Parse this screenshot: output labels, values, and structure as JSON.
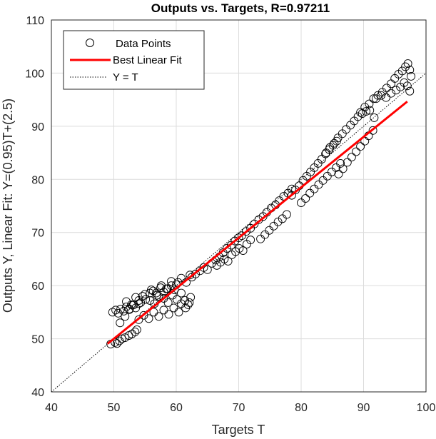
{
  "chart_data": {
    "type": "scatter",
    "title": "Outputs vs. Targets, R=0.97211",
    "xlabel": "Targets T",
    "ylabel": "Outputs Y,  Linear Fit: Y=(0.95)T+(2.5)",
    "xlim": [
      40,
      100
    ],
    "ylim": [
      40,
      110
    ],
    "xticks": [
      "40",
      "50",
      "60",
      "70",
      "80",
      "90",
      "100"
    ],
    "yticks": [
      "40",
      "50",
      "60",
      "70",
      "80",
      "90",
      "100",
      "110"
    ],
    "grid": true,
    "legend_position": "top-left",
    "legend": [
      "Data Points",
      "Best Linear Fit",
      "Y = T"
    ],
    "fit": {
      "slope": 0.95,
      "intercept": 2.5,
      "x_range": [
        49,
        97
      ]
    },
    "series": [
      {
        "name": "Data Points",
        "marker": "open-circle",
        "x": [
          49.5,
          50.2,
          50.5,
          50.9,
          51.3,
          51.8,
          52.4,
          52.9,
          53.4,
          53.7,
          49.8,
          50.3,
          50.7,
          51.1,
          51.6,
          52.0,
          52.5,
          53.0,
          53.5,
          54.0,
          51.0,
          51.8,
          52.5,
          53.2,
          54.0,
          54.6,
          55.1,
          55.8,
          56.3,
          56.9,
          57.5,
          58.0,
          58.6,
          59.2,
          59.7,
          60.3,
          60.8,
          61.4,
          61.9,
          62.3,
          52.0,
          52.8,
          53.5,
          54.3,
          55.0,
          55.8,
          56.5,
          57.2,
          58.0,
          58.7,
          59.4,
          60.1,
          60.8,
          61.5,
          62.1,
          54.0,
          54.8,
          55.6,
          56.4,
          57.2,
          58.0,
          58.8,
          59.6,
          60.4,
          56.0,
          56.8,
          57.6,
          58.4,
          59.2,
          60.0,
          60.8,
          61.6,
          62.2,
          62.5,
          63.1,
          63.8,
          64.4,
          65.0,
          65.7,
          66.3,
          66.9,
          67.5,
          68.1,
          68.8,
          69.4,
          70.0,
          66.5,
          67.1,
          67.7,
          68.3,
          68.9,
          69.5,
          70.1,
          70.7,
          71.3,
          71.9,
          70.5,
          71.2,
          71.9,
          72.5,
          73.2,
          73.9,
          74.5,
          75.2,
          75.9,
          76.5,
          77.2,
          77.9,
          78.5,
          73.5,
          74.2,
          74.9,
          75.6,
          76.3,
          77.0,
          77.7,
          78.5,
          79.1,
          79.7,
          80.3,
          80.9,
          81.5,
          82.1,
          82.7,
          83.3,
          83.9,
          84.5,
          85.1,
          85.7,
          80.0,
          80.7,
          81.4,
          82.1,
          82.8,
          83.5,
          84.2,
          84.9,
          85.6,
          86.3,
          84.0,
          84.6,
          85.3,
          85.9,
          86.6,
          87.2,
          87.9,
          88.5,
          89.1,
          89.8,
          90.4,
          91.0,
          91.7,
          86.0,
          86.7,
          87.4,
          88.1,
          88.8,
          89.5,
          90.2,
          90.8,
          91.5,
          89.5,
          90.2,
          90.9,
          91.6,
          92.3,
          93.0,
          93.7,
          94.4,
          95.0,
          95.6,
          96.2,
          96.7,
          97.1,
          97.4,
          97.6,
          92.0,
          92.8,
          93.6,
          94.4,
          95.2,
          95.9,
          96.5,
          97.0,
          97.4
        ],
        "y": [
          49.0,
          49.3,
          49.1,
          49.6,
          50.0,
          50.2,
          50.6,
          50.9,
          51.3,
          51.7,
          55.0,
          55.4,
          54.8,
          55.6,
          55.2,
          56.0,
          55.5,
          56.3,
          55.8,
          56.6,
          53.0,
          54.2,
          55.6,
          56.4,
          57.2,
          58.0,
          57.4,
          58.6,
          59.0,
          58.2,
          59.6,
          58.8,
          59.4,
          60.0,
          59.2,
          60.6,
          58.6,
          57.2,
          56.4,
          57.8,
          57.0,
          56.4,
          57.8,
          56.8,
          58.4,
          57.2,
          56.6,
          58.0,
          57.6,
          56.8,
          58.2,
          57.4,
          56.6,
          55.8,
          56.8,
          53.6,
          54.4,
          53.8,
          55.0,
          54.2,
          55.4,
          54.6,
          55.8,
          55.0,
          59.2,
          58.6,
          60.0,
          59.4,
          60.8,
          60.2,
          61.4,
          60.6,
          62.0,
          61.6,
          62.2,
          62.8,
          63.4,
          63.0,
          64.2,
          64.8,
          65.4,
          66.2,
          67.0,
          67.6,
          68.4,
          69.0,
          63.8,
          64.4,
          65.0,
          64.6,
          65.8,
          66.4,
          67.0,
          66.6,
          67.8,
          68.6,
          69.4,
          70.2,
          70.8,
          71.6,
          72.4,
          73.0,
          73.8,
          74.6,
          75.2,
          76.0,
          76.8,
          77.4,
          78.2,
          68.8,
          69.6,
          70.4,
          71.2,
          72.0,
          72.6,
          73.4,
          77.0,
          78.0,
          78.8,
          79.8,
          80.6,
          81.4,
          82.2,
          83.0,
          83.8,
          84.8,
          85.6,
          86.4,
          87.2,
          75.6,
          76.4,
          77.4,
          78.2,
          79.0,
          79.8,
          80.6,
          81.4,
          82.2,
          83.0,
          85.0,
          86.0,
          86.8,
          87.8,
          88.6,
          89.4,
          90.2,
          91.0,
          91.8,
          92.4,
          92.8,
          93.0,
          91.6,
          81.0,
          82.0,
          83.2,
          84.2,
          85.2,
          86.2,
          87.2,
          88.2,
          89.2,
          92.6,
          93.6,
          94.2,
          95.2,
          95.8,
          96.4,
          97.2,
          98.0,
          99.0,
          99.8,
          100.4,
          101.2,
          101.8,
          100.6,
          99.4,
          95.2,
          95.8,
          95.4,
          96.2,
          96.8,
          97.4,
          98.2,
          97.6,
          96.6
        ]
      },
      {
        "name": "Best Linear Fit",
        "color": "#ff0000"
      },
      {
        "name": "Y = T",
        "color": "#000000"
      }
    ]
  }
}
